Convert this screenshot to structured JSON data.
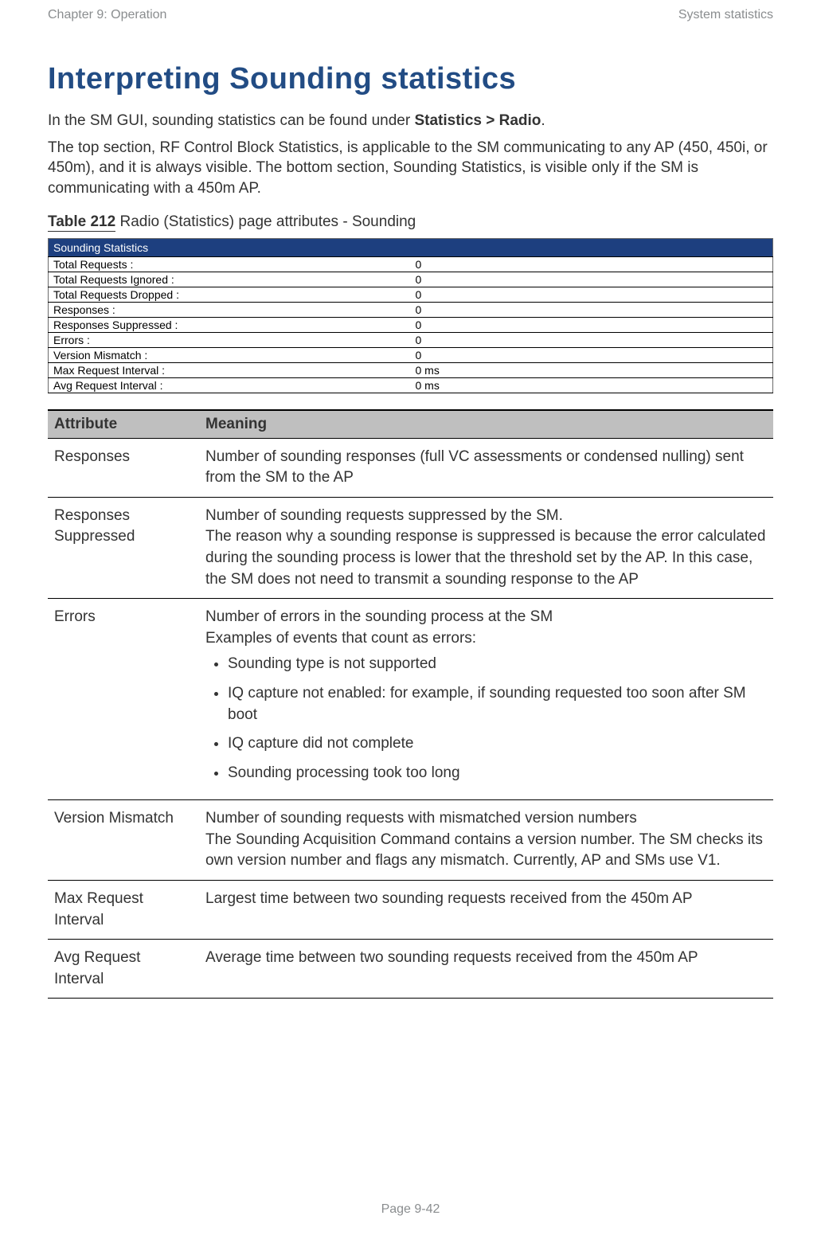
{
  "header": {
    "left": "Chapter 9:  Operation",
    "right": "System statistics"
  },
  "title": "Interpreting Sounding statistics",
  "intro": {
    "p1_pre": "In the SM GUI, sounding statistics can be found under ",
    "p1_bold": "Statistics > Radio",
    "p1_post": ".",
    "p2": "The top section, RF Control Block Statistics, is applicable to the SM communicating to any AP (450, 450i, or 450m), and it is always visible. The bottom section, Sounding Statistics, is visible only if the SM is communicating with a 450m AP."
  },
  "table_caption": {
    "label": "Table 212",
    "text": " Radio (Statistics) page attributes - Sounding"
  },
  "stats": {
    "title": "Sounding Statistics",
    "rows": [
      {
        "label": "Total Requests :",
        "value": "0"
      },
      {
        "label": "Total Requests Ignored :",
        "value": "0"
      },
      {
        "label": "Total Requests Dropped :",
        "value": "0"
      },
      {
        "label": "Responses :",
        "value": "0"
      },
      {
        "label": "Responses Suppressed :",
        "value": "0"
      },
      {
        "label": "Errors :",
        "value": "0"
      },
      {
        "label": "Version Mismatch :",
        "value": "0"
      },
      {
        "label": "Max Request Interval :",
        "value": "0 ms"
      },
      {
        "label": "Avg Request Interval :",
        "value": "0 ms"
      }
    ]
  },
  "attrib": {
    "head_attr": "Attribute",
    "head_mean": "Meaning",
    "rows": [
      {
        "attr": "Responses",
        "meaning": "Number of sounding responses (full VC assessments or condensed nulling) sent from the SM to the AP"
      },
      {
        "attr": "Responses Suppressed",
        "meaning": "Number of sounding requests suppressed by the SM.\nThe reason why a sounding response is suppressed is because the error calculated during the sounding process is lower that the threshold set by the AP. In this case, the SM does not need to transmit a sounding response to the AP"
      },
      {
        "attr": "Errors",
        "meaning_intro": "Number of errors in the sounding process at the SM\nExamples of events that count as errors:",
        "bullets": [
          "Sounding type is not supported",
          "IQ capture not enabled: for example, if sounding requested too soon after SM boot",
          "IQ capture did not complete",
          "Sounding processing took too long"
        ]
      },
      {
        "attr": "Version Mismatch",
        "meaning": "Number of sounding requests with mismatched version numbers\nThe Sounding Acquisition Command contains a version number. The SM checks its own version number and flags any mismatch. Currently, AP and SMs use V1."
      },
      {
        "attr": "Max Request Interval",
        "meaning": "Largest time between two sounding requests received from the 450m AP"
      },
      {
        "attr": "Avg Request Interval",
        "meaning": "Average time between two sounding requests received from the 450m AP"
      }
    ]
  },
  "footer": "Page 9-42"
}
